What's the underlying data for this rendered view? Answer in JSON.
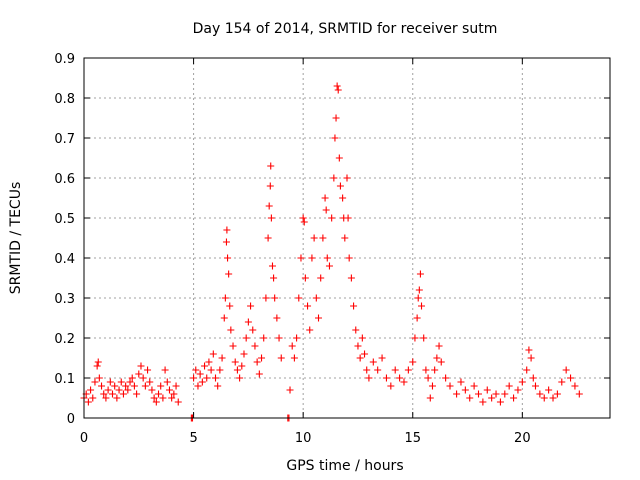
{
  "chart_data": {
    "type": "scatter",
    "title": "Day 154 of 2014, SRMTID for receiver sutm",
    "xlabel": "GPS time / hours",
    "ylabel": "SRMTID / TECUs",
    "xlim": [
      0,
      24
    ],
    "ylim": [
      0,
      0.9
    ],
    "xticks": [
      0,
      5,
      10,
      15,
      20
    ],
    "yticks": [
      0,
      0.1,
      0.2,
      0.3,
      0.4,
      0.5,
      0.6,
      0.7,
      0.8,
      0.9
    ],
    "xtick_labels": [
      "0",
      "5",
      "10",
      "15",
      "20"
    ],
    "ytick_labels": [
      "0",
      "0.1",
      "0.2",
      "0.3",
      "0.4",
      "0.5",
      "0.6",
      "0.7",
      "0.8",
      "0.9"
    ],
    "grid": true,
    "marker": "+",
    "color": "#ff0000",
    "series": [
      {
        "name": "SRMTID",
        "points": [
          [
            0.0,
            0.05
          ],
          [
            0.1,
            0.06
          ],
          [
            0.2,
            0.04
          ],
          [
            0.3,
            0.07
          ],
          [
            0.4,
            0.05
          ],
          [
            0.5,
            0.09
          ],
          [
            0.6,
            0.13
          ],
          [
            0.65,
            0.14
          ],
          [
            0.7,
            0.1
          ],
          [
            0.8,
            0.08
          ],
          [
            0.9,
            0.06
          ],
          [
            1.0,
            0.05
          ],
          [
            1.1,
            0.07
          ],
          [
            1.2,
            0.09
          ],
          [
            1.3,
            0.06
          ],
          [
            1.4,
            0.08
          ],
          [
            1.5,
            0.05
          ],
          [
            1.6,
            0.07
          ],
          [
            1.7,
            0.09
          ],
          [
            1.8,
            0.06
          ],
          [
            1.9,
            0.08
          ],
          [
            2.0,
            0.07
          ],
          [
            2.1,
            0.09
          ],
          [
            2.2,
            0.1
          ],
          [
            2.3,
            0.08
          ],
          [
            2.4,
            0.06
          ],
          [
            2.5,
            0.11
          ],
          [
            2.6,
            0.13
          ],
          [
            2.7,
            0.1
          ],
          [
            2.8,
            0.08
          ],
          [
            2.9,
            0.12
          ],
          [
            3.0,
            0.09
          ],
          [
            3.1,
            0.07
          ],
          [
            3.2,
            0.05
          ],
          [
            3.3,
            0.04
          ],
          [
            3.4,
            0.06
          ],
          [
            3.5,
            0.08
          ],
          [
            3.6,
            0.05
          ],
          [
            3.7,
            0.12
          ],
          [
            3.8,
            0.09
          ],
          [
            3.9,
            0.07
          ],
          [
            4.0,
            0.05
          ],
          [
            4.1,
            0.06
          ],
          [
            4.2,
            0.08
          ],
          [
            4.3,
            0.04
          ],
          [
            4.9,
            0.0
          ],
          [
            4.95,
            0.0
          ],
          [
            5.0,
            0.1
          ],
          [
            5.1,
            0.12
          ],
          [
            5.2,
            0.08
          ],
          [
            5.3,
            0.11
          ],
          [
            5.4,
            0.09
          ],
          [
            5.5,
            0.13
          ],
          [
            5.6,
            0.1
          ],
          [
            5.7,
            0.14
          ],
          [
            5.8,
            0.12
          ],
          [
            5.9,
            0.16
          ],
          [
            6.0,
            0.1
          ],
          [
            6.1,
            0.08
          ],
          [
            6.2,
            0.12
          ],
          [
            6.3,
            0.15
          ],
          [
            6.4,
            0.25
          ],
          [
            6.45,
            0.3
          ],
          [
            6.5,
            0.44
          ],
          [
            6.52,
            0.47
          ],
          [
            6.55,
            0.4
          ],
          [
            6.6,
            0.36
          ],
          [
            6.65,
            0.28
          ],
          [
            6.7,
            0.22
          ],
          [
            6.8,
            0.18
          ],
          [
            6.9,
            0.14
          ],
          [
            7.0,
            0.12
          ],
          [
            7.1,
            0.1
          ],
          [
            7.2,
            0.13
          ],
          [
            7.3,
            0.16
          ],
          [
            7.4,
            0.2
          ],
          [
            7.5,
            0.24
          ],
          [
            7.6,
            0.28
          ],
          [
            7.7,
            0.22
          ],
          [
            7.8,
            0.18
          ],
          [
            7.9,
            0.14
          ],
          [
            8.0,
            0.11
          ],
          [
            8.1,
            0.15
          ],
          [
            8.2,
            0.2
          ],
          [
            8.3,
            0.3
          ],
          [
            8.4,
            0.45
          ],
          [
            8.45,
            0.53
          ],
          [
            8.5,
            0.58
          ],
          [
            8.52,
            0.63
          ],
          [
            8.55,
            0.5
          ],
          [
            8.6,
            0.38
          ],
          [
            8.65,
            0.35
          ],
          [
            8.7,
            0.3
          ],
          [
            8.8,
            0.25
          ],
          [
            8.9,
            0.2
          ],
          [
            9.0,
            0.15
          ],
          [
            9.3,
            0.0
          ],
          [
            9.35,
            0.0
          ],
          [
            9.4,
            0.07
          ],
          [
            9.5,
            0.18
          ],
          [
            9.6,
            0.15
          ],
          [
            9.7,
            0.2
          ],
          [
            9.8,
            0.3
          ],
          [
            9.9,
            0.4
          ],
          [
            10.0,
            0.5
          ],
          [
            10.05,
            0.49
          ],
          [
            10.1,
            0.35
          ],
          [
            10.2,
            0.28
          ],
          [
            10.3,
            0.22
          ],
          [
            10.4,
            0.4
          ],
          [
            10.5,
            0.45
          ],
          [
            10.6,
            0.3
          ],
          [
            10.7,
            0.25
          ],
          [
            10.8,
            0.35
          ],
          [
            10.9,
            0.45
          ],
          [
            11.0,
            0.55
          ],
          [
            11.05,
            0.52
          ],
          [
            11.1,
            0.4
          ],
          [
            11.2,
            0.38
          ],
          [
            11.3,
            0.5
          ],
          [
            11.4,
            0.6
          ],
          [
            11.45,
            0.7
          ],
          [
            11.5,
            0.75
          ],
          [
            11.55,
            0.83
          ],
          [
            11.6,
            0.82
          ],
          [
            11.65,
            0.65
          ],
          [
            11.7,
            0.58
          ],
          [
            11.8,
            0.55
          ],
          [
            11.85,
            0.5
          ],
          [
            11.9,
            0.45
          ],
          [
            12.0,
            0.6
          ],
          [
            12.05,
            0.5
          ],
          [
            12.1,
            0.4
          ],
          [
            12.2,
            0.35
          ],
          [
            12.3,
            0.28
          ],
          [
            12.4,
            0.22
          ],
          [
            12.5,
            0.18
          ],
          [
            12.6,
            0.15
          ],
          [
            12.7,
            0.2
          ],
          [
            12.8,
            0.16
          ],
          [
            12.9,
            0.12
          ],
          [
            13.0,
            0.1
          ],
          [
            13.2,
            0.14
          ],
          [
            13.4,
            0.12
          ],
          [
            13.6,
            0.15
          ],
          [
            13.8,
            0.1
          ],
          [
            14.0,
            0.08
          ],
          [
            14.2,
            0.12
          ],
          [
            14.4,
            0.1
          ],
          [
            14.6,
            0.09
          ],
          [
            14.8,
            0.12
          ],
          [
            15.0,
            0.14
          ],
          [
            15.1,
            0.2
          ],
          [
            15.2,
            0.25
          ],
          [
            15.25,
            0.3
          ],
          [
            15.3,
            0.32
          ],
          [
            15.35,
            0.36
          ],
          [
            15.4,
            0.28
          ],
          [
            15.5,
            0.2
          ],
          [
            15.6,
            0.12
          ],
          [
            15.7,
            0.1
          ],
          [
            15.8,
            0.05
          ],
          [
            15.9,
            0.08
          ],
          [
            16.0,
            0.12
          ],
          [
            16.1,
            0.15
          ],
          [
            16.2,
            0.18
          ],
          [
            16.3,
            0.14
          ],
          [
            16.5,
            0.1
          ],
          [
            16.7,
            0.08
          ],
          [
            17.0,
            0.06
          ],
          [
            17.2,
            0.09
          ],
          [
            17.4,
            0.07
          ],
          [
            17.6,
            0.05
          ],
          [
            17.8,
            0.08
          ],
          [
            18.0,
            0.06
          ],
          [
            18.2,
            0.04
          ],
          [
            18.4,
            0.07
          ],
          [
            18.6,
            0.05
          ],
          [
            18.8,
            0.06
          ],
          [
            19.0,
            0.04
          ],
          [
            19.2,
            0.06
          ],
          [
            19.4,
            0.08
          ],
          [
            19.6,
            0.05
          ],
          [
            19.8,
            0.07
          ],
          [
            20.0,
            0.09
          ],
          [
            20.2,
            0.12
          ],
          [
            20.3,
            0.17
          ],
          [
            20.4,
            0.15
          ],
          [
            20.5,
            0.1
          ],
          [
            20.6,
            0.08
          ],
          [
            20.8,
            0.06
          ],
          [
            21.0,
            0.05
          ],
          [
            21.2,
            0.07
          ],
          [
            21.4,
            0.05
          ],
          [
            21.6,
            0.06
          ],
          [
            21.8,
            0.09
          ],
          [
            22.0,
            0.12
          ],
          [
            22.2,
            0.1
          ],
          [
            22.4,
            0.08
          ],
          [
            22.6,
            0.06
          ]
        ]
      }
    ]
  }
}
